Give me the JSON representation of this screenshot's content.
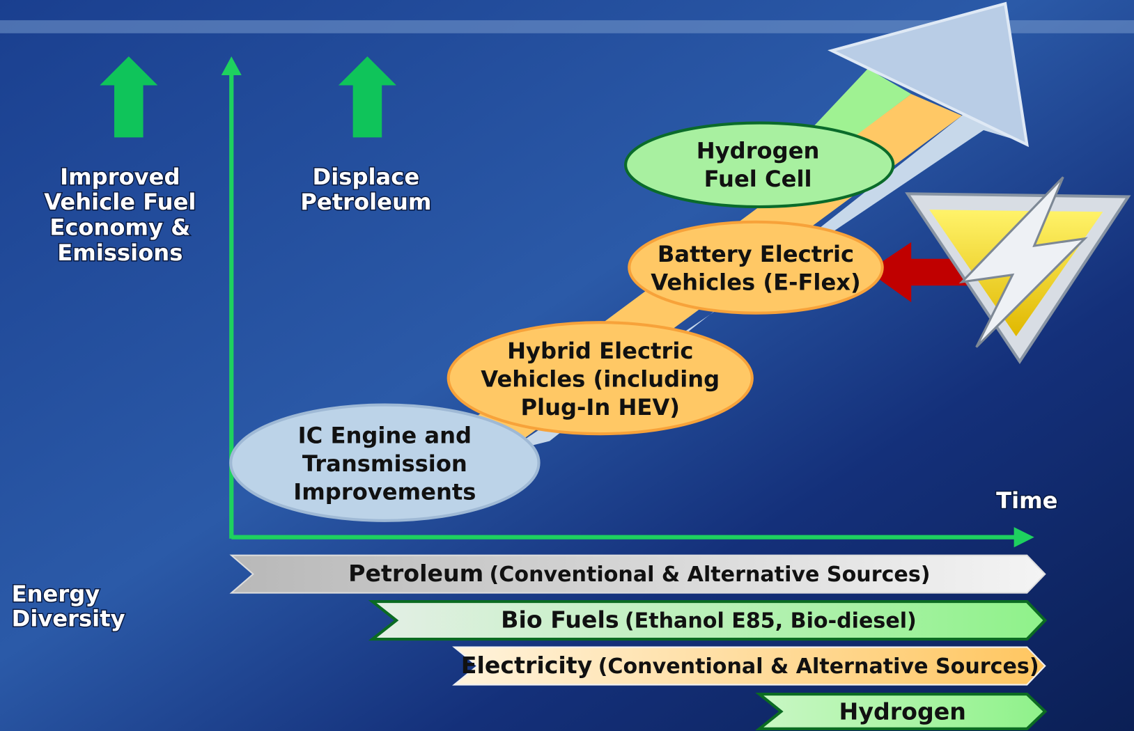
{
  "goals": [
    {
      "lines": [
        "Improved",
        "Vehicle Fuel",
        "Economy &",
        "Emissions"
      ]
    },
    {
      "lines": [
        "Displace",
        "Petroleum"
      ]
    }
  ],
  "stages": [
    {
      "lines": [
        "IC Engine and",
        "Transmission",
        "Improvements"
      ]
    },
    {
      "lines": [
        "Hybrid Electric",
        "Vehicles (including",
        "Plug-In HEV)"
      ]
    },
    {
      "lines": [
        "Battery Electric",
        "Vehicles (E-Flex)"
      ]
    },
    {
      "lines": [
        "Hydrogen",
        "Fuel Cell"
      ]
    }
  ],
  "axis_label": "Time",
  "energy_label": {
    "lines": [
      "Energy",
      "Diversity"
    ]
  },
  "energy_sources": [
    {
      "name": "Petroleum",
      "detail": "(Conventional & Alternative Sources)"
    },
    {
      "name": "Bio Fuels",
      "detail": "(Ethanol E85, Bio-diesel)"
    },
    {
      "name": "Electricity",
      "detail": "(Conventional & Alternative Sources)"
    },
    {
      "name": "Hydrogen",
      "detail": ""
    }
  ]
}
